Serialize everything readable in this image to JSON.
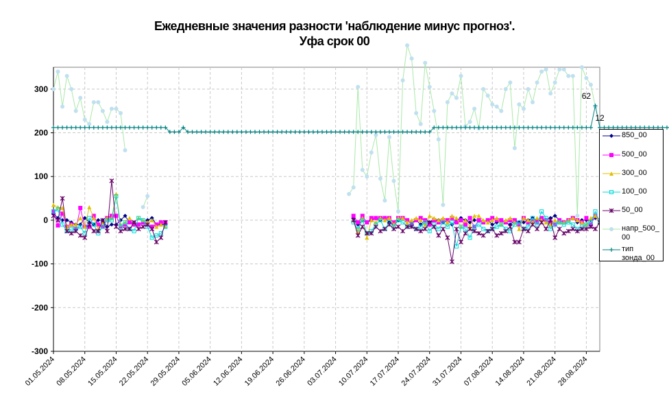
{
  "title_line1": "Ежедневные значения разности 'наблюдение минус прогноз'.",
  "title_line2": "Уфа     срок 00",
  "chart_data": {
    "type": "line",
    "ylim": [
      -300,
      350
    ],
    "yticks": [
      -300,
      -200,
      -100,
      0,
      100,
      200,
      300
    ],
    "xlim": [
      "2024-05-01",
      "2024-08-31"
    ],
    "xtick_labels": [
      "01.05.2024",
      "08.05.2024",
      "15.05.2024",
      "22.05.2024",
      "29.05.2024",
      "05.06.2024",
      "12.06.2024",
      "19.06.2024",
      "26.06.2024",
      "03.07.2024",
      "10.07.2024",
      "17.07.2024",
      "24.07.2024",
      "31.07.2024",
      "07.08.2024",
      "14.08.2024",
      "21.08.2024",
      "28.08.2024"
    ],
    "grid": true,
    "legend_position": "right",
    "annotations": [
      {
        "text": "62",
        "x": "2024-08-28",
        "y": 262
      },
      {
        "text": "12",
        "x": "2024-08-31",
        "y": 212
      }
    ],
    "series": [
      {
        "name": "850_00",
        "color": "#00008b",
        "marker": "diamond",
        "segments": [
          {
            "start": "2024-05-01",
            "values": [
              15,
              5,
              0,
              0,
              -5,
              -10,
              -10,
              5,
              -5,
              -10,
              0,
              0,
              -15,
              -10,
              -10,
              0,
              10,
              -5,
              -5,
              -10,
              -5,
              0,
              5,
              -10,
              -10,
              -10
            ]
          },
          {
            "start": "2024-07-07",
            "values": [
              5,
              -10,
              0,
              -5,
              0,
              5,
              0,
              5,
              -5,
              -10,
              0,
              5,
              0,
              -5,
              0,
              -10,
              0,
              -5,
              0,
              0,
              -5,
              0,
              -10,
              0,
              5,
              0,
              -5,
              0,
              0,
              -5,
              0,
              -10,
              -5,
              0,
              -5,
              -10,
              0,
              -5,
              -5,
              0,
              5,
              0,
              0,
              0,
              5,
              10,
              0,
              -5,
              0,
              5,
              -5,
              0,
              0,
              0,
              5,
              0
            ]
          }
        ]
      },
      {
        "name": "500_00",
        "color": "#ff00ff",
        "marker": "square",
        "segments": [
          {
            "start": "2024-05-01",
            "values": [
              20,
              -12,
              15,
              -15,
              -10,
              -20,
              28,
              -15,
              -15,
              10,
              -10,
              -15,
              5,
              10,
              10,
              -15,
              -10,
              -5,
              -10,
              -10,
              -5,
              -10,
              -15,
              -10,
              -5,
              -5
            ]
          },
          {
            "start": "2024-07-07",
            "values": [
              10,
              -5,
              10,
              -5,
              5,
              5,
              5,
              5,
              5,
              -5,
              5,
              5,
              0,
              -10,
              0,
              5,
              0,
              -10,
              0,
              -5,
              0,
              0,
              5,
              -5,
              0,
              -10,
              5,
              -15,
              0,
              -5,
              0,
              5,
              0,
              0,
              -5,
              0,
              0,
              -10,
              5,
              -5,
              0,
              -5,
              5,
              0,
              -5,
              -10,
              0,
              -5,
              0,
              5,
              0,
              -5,
              5,
              -10,
              10,
              0
            ]
          }
        ]
      },
      {
        "name": "300_00",
        "color": "#e0c000",
        "marker": "triangle",
        "segments": [
          {
            "start": "2024-05-01",
            "values": [
              35,
              30,
              28,
              -15,
              -10,
              -10,
              5,
              -15,
              30,
              5,
              -20,
              -5,
              5,
              5,
              60,
              -10,
              -5,
              5,
              -5,
              5,
              0,
              -5,
              0,
              -15,
              -10,
              -15
            ]
          },
          {
            "start": "2024-07-07",
            "values": [
              0,
              -25,
              5,
              -40,
              0,
              -5,
              5,
              0,
              5,
              -10,
              5,
              5,
              -5,
              0,
              5,
              0,
              -10,
              10,
              5,
              0,
              5,
              -5,
              10,
              5,
              -15,
              0,
              -15,
              10,
              10,
              0,
              -5,
              0,
              5,
              -10,
              0,
              5,
              -5,
              -20,
              5,
              0,
              -5,
              5,
              0,
              -5,
              -10,
              0,
              -5,
              -5,
              0,
              5,
              0,
              -5,
              -10,
              5,
              10,
              -5
            ]
          }
        ]
      },
      {
        "name": "100_00",
        "color": "#00d8d8",
        "marker": "square-open",
        "segments": [
          {
            "start": "2024-05-01",
            "values": [
              20,
              25,
              -10,
              -25,
              -20,
              -20,
              -15,
              -30,
              5,
              -10,
              -30,
              -15,
              0,
              0,
              55,
              -15,
              -5,
              -20,
              -25,
              5,
              0,
              -15,
              -40,
              -35,
              -30,
              -15
            ]
          },
          {
            "start": "2024-07-07",
            "values": [
              -5,
              -20,
              0,
              -30,
              -25,
              -10,
              0,
              -20,
              -5,
              -15,
              0,
              -5,
              -15,
              -10,
              -20,
              -15,
              -5,
              -25,
              -10,
              -20,
              -5,
              -15,
              -5,
              -60,
              -15,
              -20,
              -40,
              -15,
              -10,
              -20,
              -25,
              -20,
              -15,
              -10,
              -20,
              -25,
              -10,
              -5,
              -20,
              -15,
              5,
              -10,
              20,
              5,
              -20,
              -10,
              -5,
              -10,
              -5,
              -10,
              -20,
              -15,
              -10,
              -5,
              20,
              -5
            ]
          }
        ]
      },
      {
        "name": "50_00",
        "color": "#660066",
        "marker": "star",
        "segments": [
          {
            "start": "2024-05-01",
            "values": [
              10,
              0,
              50,
              -25,
              -30,
              -25,
              -35,
              -40,
              -10,
              -25,
              -25,
              0,
              -25,
              90,
              -15,
              -25,
              -20,
              -20,
              -5,
              -20,
              -15,
              -10,
              -20,
              -50,
              -40,
              -5
            ]
          },
          {
            "start": "2024-07-07",
            "values": [
              0,
              -35,
              -15,
              -30,
              -30,
              -15,
              -25,
              -20,
              -10,
              -20,
              -15,
              -25,
              -15,
              -15,
              -20,
              -25,
              -20,
              -5,
              -15,
              -35,
              -20,
              -40,
              -95,
              -20,
              -50,
              -30,
              -20,
              -25,
              -30,
              -35,
              -25,
              -20,
              -35,
              -30,
              -25,
              -15,
              -50,
              -50,
              -20,
              -25,
              -10,
              -20,
              -5,
              -20,
              0,
              -40,
              -20,
              -30,
              -25,
              -20,
              -25,
              -20,
              -20,
              -15,
              -20,
              -5
            ]
          }
        ]
      },
      {
        "name": "напр_500_00",
        "color": "#c0e0f0",
        "line_color": "#a8e8a8",
        "marker": "circle",
        "segments": [
          {
            "start": "2024-05-01",
            "values": [
              300,
              340,
              260,
              330,
              300,
              250,
              280,
              230,
              220,
              270,
              270,
              250,
              225,
              255,
              255,
              245,
              160,
              null,
              null,
              null,
              30,
              55
            ]
          },
          {
            "start": "2024-07-06",
            "values": [
              60,
              75,
              305,
              115,
              100,
              155,
              195,
              95,
              45,
              190,
              90,
              20,
              320,
              400,
              370,
              245,
              220,
              360,
              305,
              250,
              185,
              35,
              270,
              290,
              280,
              330,
              215,
              225,
              255,
              210,
              300,
              285,
              265,
              260,
              250,
              300,
              315,
              165,
              265,
              255,
              300,
              270,
              315,
              340,
              345,
              290,
              315,
              345,
              345,
              330,
              330,
              10,
              350,
              325,
              310,
              260
            ]
          }
        ]
      },
      {
        "name": "тип зонда_00",
        "color": "#008080",
        "marker": "plus",
        "segments": [
          {
            "start": "2024-05-01",
            "values": [
              212,
              212,
              212,
              212,
              212,
              212,
              212,
              212,
              212,
              212,
              212,
              212,
              212,
              212,
              212,
              212,
              212,
              212,
              212,
              212,
              212,
              212,
              212,
              212,
              212,
              212,
              202,
              202,
              202,
              212,
              202,
              202,
              202,
              202,
              202,
              202,
              202,
              202,
              202,
              202,
              202,
              202,
              202,
              202,
              202,
              202,
              202,
              202,
              202,
              202,
              202,
              202,
              202,
              202,
              202,
              202,
              202,
              202,
              202,
              202,
              202,
              202,
              202,
              202,
              202,
              202,
              202,
              202,
              202,
              202,
              202,
              202,
              202,
              202,
              202,
              202,
              202,
              202,
              202,
              202,
              202,
              202,
              202,
              202,
              202,
              212,
              212,
              212,
              212,
              212,
              212,
              212,
              212,
              212,
              212,
              212,
              212,
              212,
              212,
              212,
              212,
              212,
              212,
              212,
              212,
              212,
              212,
              212,
              212,
              212,
              212,
              212,
              212,
              212,
              212,
              212,
              212,
              212,
              212,
              212,
              212,
              262,
              212,
              212,
              212,
              212,
              212,
              212,
              212,
              212,
              212,
              212,
              212,
              212,
              212,
              212,
              212,
              212,
              212,
              212,
              212,
              212,
              212,
              212,
              212,
              262,
              212,
              212,
              212
            ]
          }
        ]
      }
    ]
  },
  "legend": [
    {
      "label": "850_00"
    },
    {
      "label": "500_00"
    },
    {
      "label": "300_00"
    },
    {
      "label": "100_00"
    },
    {
      "label": "50_00"
    },
    {
      "label": "напр_500_00"
    },
    {
      "label": "тип зонда_00"
    }
  ]
}
